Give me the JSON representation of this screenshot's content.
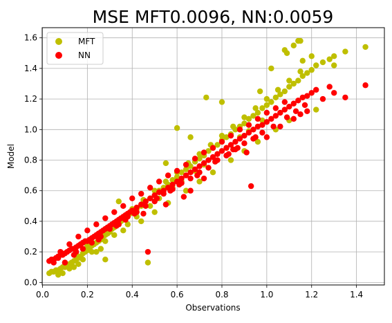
{
  "chart_data": {
    "type": "scatter",
    "title": "MSE MFT0.0096, NN:0.0059",
    "xlabel": "Observations",
    "ylabel": "Model",
    "xlim": [
      -0.0015,
      1.5245
    ],
    "ylim": [
      -0.0165,
      1.6665
    ],
    "xticks": [
      0.0,
      0.2,
      0.4,
      0.6,
      0.8,
      1.0,
      1.2,
      1.4
    ],
    "xtick_labels": [
      "0.0",
      "0.2",
      "0.4",
      "0.6",
      "0.8",
      "1.0",
      "1.2",
      "1.4"
    ],
    "yticks": [
      0.0,
      0.2,
      0.4,
      0.6,
      0.8,
      1.0,
      1.2,
      1.4,
      1.6
    ],
    "ytick_labels": [
      "0.0",
      "0.2",
      "0.4",
      "0.6",
      "0.8",
      "1.0",
      "1.2",
      "1.4",
      "1.6"
    ],
    "grid": true,
    "legend_position": "top-left",
    "series": [
      {
        "name": "MFT",
        "color": "#bfbf00",
        "x": [
          0.03,
          0.04,
          0.05,
          0.06,
          0.07,
          0.08,
          0.09,
          0.1,
          0.11,
          0.12,
          0.13,
          0.14,
          0.15,
          0.16,
          0.17,
          0.18,
          0.19,
          0.2,
          0.21,
          0.22,
          0.23,
          0.24,
          0.25,
          0.26,
          0.27,
          0.28,
          0.29,
          0.3,
          0.31,
          0.32,
          0.33,
          0.34,
          0.35,
          0.36,
          0.37,
          0.38,
          0.39,
          0.4,
          0.42,
          0.44,
          0.46,
          0.48,
          0.5,
          0.52,
          0.54,
          0.56,
          0.58,
          0.6,
          0.62,
          0.64,
          0.66,
          0.68,
          0.7,
          0.72,
          0.74,
          0.76,
          0.78,
          0.8,
          0.82,
          0.84,
          0.86,
          0.88,
          0.9,
          0.92,
          0.94,
          0.96,
          0.98,
          1.0,
          1.02,
          1.04,
          1.06,
          1.08,
          1.1,
          1.12,
          1.14,
          1.16,
          1.18,
          1.2,
          1.22,
          1.25,
          1.28,
          1.3,
          1.35,
          1.44,
          0.1,
          0.15,
          0.2,
          0.25,
          0.3,
          0.35,
          0.4,
          0.45,
          0.5,
          0.55,
          0.6,
          0.65,
          0.7,
          0.75,
          0.8,
          0.85,
          0.9,
          0.95,
          1.0,
          1.05,
          1.1,
          1.15,
          0.12,
          0.18,
          0.22,
          0.28,
          0.32,
          0.38,
          0.42,
          0.48,
          0.52,
          0.58,
          0.62,
          0.68,
          0.72,
          0.78,
          0.82,
          0.88,
          0.92,
          0.98,
          1.08,
          1.12,
          1.14,
          1.15,
          0.47,
          0.28,
          0.34,
          0.55,
          0.6,
          0.66,
          0.73,
          0.8,
          0.97,
          1.02,
          1.09,
          1.16,
          1.2,
          1.3,
          0.07,
          0.09,
          0.14,
          0.16,
          0.24,
          0.26,
          0.36,
          0.44,
          0.5,
          0.56,
          0.64,
          0.7,
          0.76,
          0.84,
          0.9,
          0.96,
          1.04,
          1.1,
          1.22
        ],
        "y": [
          0.06,
          0.07,
          0.07,
          0.08,
          0.08,
          0.09,
          0.1,
          0.1,
          0.11,
          0.12,
          0.13,
          0.14,
          0.15,
          0.16,
          0.17,
          0.19,
          0.2,
          0.21,
          0.22,
          0.24,
          0.25,
          0.26,
          0.27,
          0.28,
          0.3,
          0.31,
          0.32,
          0.33,
          0.35,
          0.36,
          0.37,
          0.38,
          0.4,
          0.41,
          0.42,
          0.44,
          0.45,
          0.46,
          0.48,
          0.5,
          0.53,
          0.55,
          0.57,
          0.6,
          0.62,
          0.64,
          0.67,
          0.69,
          0.72,
          0.74,
          0.76,
          0.79,
          0.81,
          0.83,
          0.86,
          0.88,
          0.9,
          0.93,
          0.95,
          0.97,
          1.0,
          1.02,
          1.04,
          1.07,
          1.09,
          1.11,
          1.14,
          1.16,
          1.18,
          1.21,
          1.23,
          1.25,
          1.28,
          1.3,
          1.32,
          1.35,
          1.37,
          1.39,
          1.42,
          1.44,
          1.46,
          1.48,
          1.51,
          1.54,
          0.13,
          0.19,
          0.24,
          0.3,
          0.36,
          0.42,
          0.48,
          0.54,
          0.6,
          0.66,
          0.72,
          0.78,
          0.84,
          0.9,
          0.96,
          1.02,
          1.08,
          1.14,
          1.2,
          1.26,
          1.32,
          1.38,
          0.09,
          0.15,
          0.2,
          0.27,
          0.31,
          0.38,
          0.43,
          0.5,
          0.55,
          0.62,
          0.66,
          0.73,
          0.77,
          0.84,
          0.88,
          0.95,
          0.99,
          1.06,
          1.52,
          1.55,
          1.58,
          1.58,
          0.13,
          0.15,
          0.53,
          0.78,
          1.01,
          0.95,
          1.21,
          1.18,
          1.25,
          1.4,
          1.5,
          1.45,
          1.48,
          1.42,
          0.05,
          0.06,
          0.1,
          0.12,
          0.2,
          0.22,
          0.34,
          0.4,
          0.46,
          0.52,
          0.6,
          0.66,
          0.72,
          0.8,
          0.86,
          0.92,
          1.0,
          1.06,
          1.13
        ]
      },
      {
        "name": "NN",
        "color": "#ff0000",
        "x": [
          0.03,
          0.04,
          0.05,
          0.06,
          0.07,
          0.08,
          0.09,
          0.1,
          0.11,
          0.12,
          0.13,
          0.14,
          0.15,
          0.16,
          0.17,
          0.18,
          0.19,
          0.2,
          0.21,
          0.22,
          0.23,
          0.24,
          0.25,
          0.26,
          0.27,
          0.28,
          0.29,
          0.3,
          0.31,
          0.32,
          0.33,
          0.34,
          0.35,
          0.36,
          0.37,
          0.38,
          0.39,
          0.4,
          0.42,
          0.44,
          0.46,
          0.48,
          0.5,
          0.52,
          0.54,
          0.56,
          0.58,
          0.6,
          0.62,
          0.64,
          0.66,
          0.68,
          0.7,
          0.72,
          0.74,
          0.76,
          0.78,
          0.8,
          0.82,
          0.84,
          0.86,
          0.88,
          0.9,
          0.92,
          0.94,
          0.96,
          0.98,
          1.0,
          1.02,
          1.04,
          1.06,
          1.08,
          1.1,
          1.12,
          1.14,
          1.16,
          1.18,
          1.2,
          1.22,
          1.28,
          1.3,
          1.35,
          1.44,
          0.08,
          0.12,
          0.16,
          0.2,
          0.24,
          0.28,
          0.32,
          0.36,
          0.4,
          0.44,
          0.48,
          0.52,
          0.56,
          0.6,
          0.64,
          0.68,
          0.72,
          0.76,
          0.8,
          0.84,
          0.88,
          0.92,
          0.96,
          1.0,
          1.04,
          1.08,
          0.1,
          0.14,
          0.18,
          0.22,
          0.26,
          0.3,
          0.34,
          0.38,
          0.42,
          0.46,
          0.5,
          0.54,
          0.58,
          0.62,
          0.66,
          0.7,
          0.74,
          0.78,
          0.82,
          0.86,
          0.9,
          0.94,
          0.98,
          1.06,
          1.12,
          1.15,
          1.18,
          1.25,
          0.47,
          0.85,
          0.91,
          0.93,
          1.0,
          0.63,
          0.66,
          0.55,
          0.72,
          0.45,
          0.05,
          0.07,
          0.15,
          0.25,
          0.33,
          0.37,
          0.41,
          0.51,
          0.57,
          0.61,
          0.69,
          0.77,
          0.83,
          0.87,
          0.95,
          1.03,
          1.09,
          1.13,
          1.17
        ],
        "y": [
          0.14,
          0.15,
          0.15,
          0.16,
          0.17,
          0.18,
          0.18,
          0.19,
          0.2,
          0.21,
          0.22,
          0.22,
          0.23,
          0.24,
          0.25,
          0.26,
          0.27,
          0.27,
          0.28,
          0.29,
          0.3,
          0.31,
          0.32,
          0.33,
          0.34,
          0.35,
          0.36,
          0.37,
          0.38,
          0.39,
          0.4,
          0.41,
          0.42,
          0.43,
          0.44,
          0.45,
          0.46,
          0.47,
          0.49,
          0.51,
          0.53,
          0.55,
          0.57,
          0.59,
          0.6,
          0.62,
          0.64,
          0.66,
          0.68,
          0.7,
          0.72,
          0.74,
          0.76,
          0.78,
          0.8,
          0.82,
          0.84,
          0.86,
          0.88,
          0.9,
          0.92,
          0.94,
          0.96,
          0.98,
          1.0,
          1.02,
          1.03,
          1.05,
          1.07,
          1.09,
          1.11,
          1.13,
          1.15,
          1.17,
          1.19,
          1.21,
          1.22,
          1.24,
          1.26,
          1.28,
          1.24,
          1.21,
          1.29,
          0.2,
          0.25,
          0.3,
          0.34,
          0.38,
          0.42,
          0.46,
          0.5,
          0.55,
          0.58,
          0.62,
          0.66,
          0.7,
          0.73,
          0.77,
          0.81,
          0.85,
          0.88,
          0.92,
          0.96,
          1.0,
          1.03,
          1.07,
          1.11,
          1.14,
          1.18,
          0.13,
          0.18,
          0.22,
          0.26,
          0.3,
          0.35,
          0.38,
          0.43,
          0.46,
          0.5,
          0.53,
          0.58,
          0.61,
          0.65,
          0.68,
          0.72,
          0.75,
          0.8,
          0.83,
          0.87,
          0.91,
          0.94,
          0.98,
          1.02,
          1.07,
          1.1,
          1.12,
          1.2,
          0.2,
          0.87,
          0.85,
          0.63,
          0.95,
          0.56,
          0.6,
          0.51,
          0.68,
          0.45,
          0.13,
          0.16,
          0.2,
          0.28,
          0.37,
          0.41,
          0.45,
          0.55,
          0.6,
          0.64,
          0.7,
          0.79,
          0.84,
          0.88,
          0.95,
          1.02,
          1.08,
          1.12,
          1.16
        ]
      }
    ]
  }
}
